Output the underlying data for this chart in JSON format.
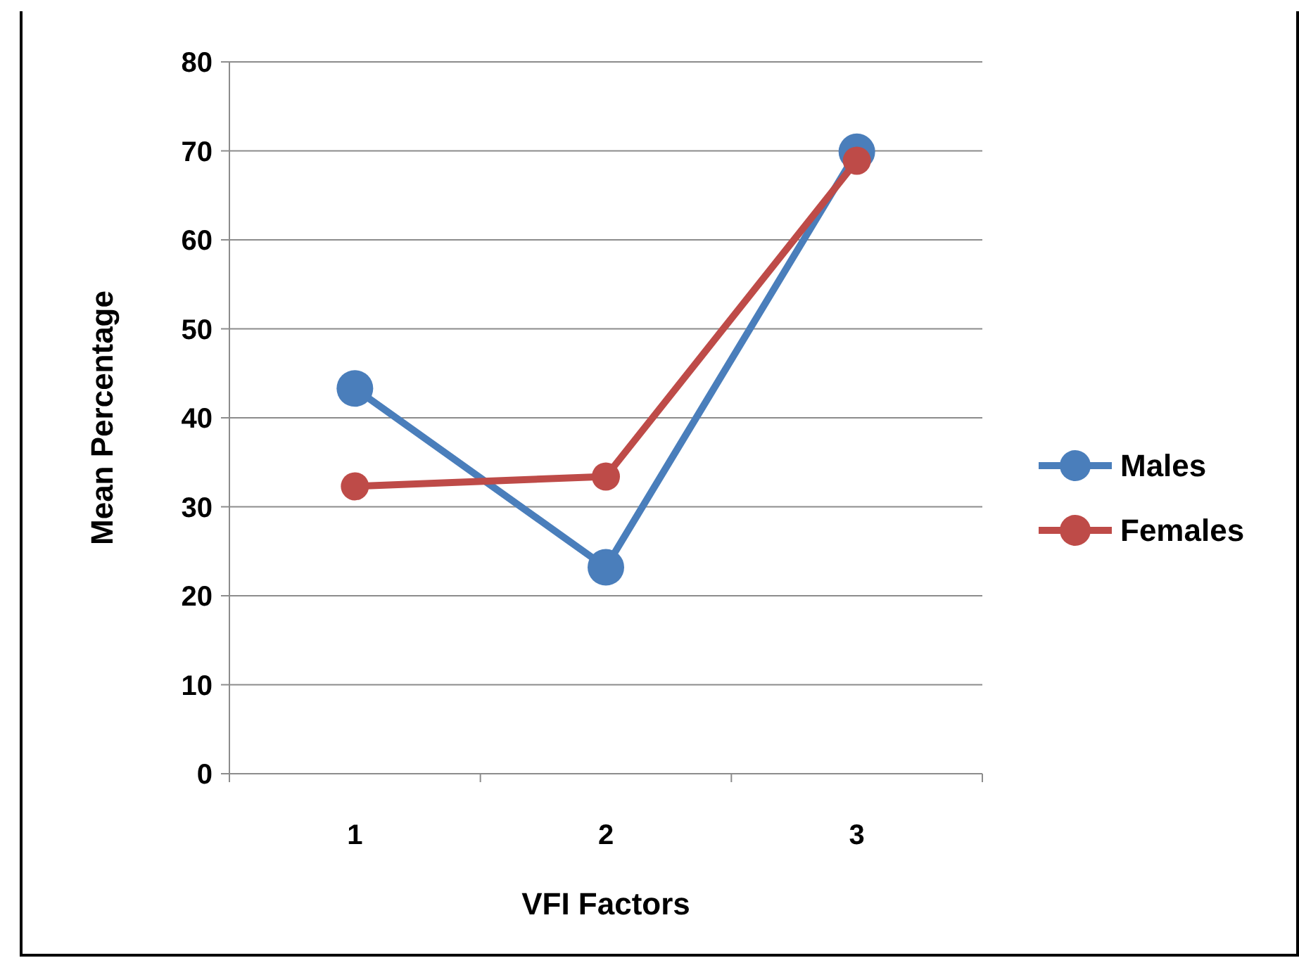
{
  "chart_data": {
    "type": "line",
    "xlabel": "VFI Factors",
    "ylabel": "Mean Percentage",
    "categories": [
      "1",
      "2",
      "3"
    ],
    "series": [
      {
        "name": "Males",
        "color": "#4a7ebb",
        "values": [
          43.3,
          23.2,
          69.9
        ]
      },
      {
        "name": "Females",
        "color": "#be4b48",
        "values": [
          32.3,
          33.4,
          68.9
        ]
      }
    ],
    "ylim": [
      0,
      80
    ],
    "yticks": [
      0,
      10,
      20,
      30,
      40,
      50,
      60,
      70,
      80
    ],
    "grid": "y",
    "legend": "right",
    "marker": "circle",
    "line_style": "solid"
  }
}
